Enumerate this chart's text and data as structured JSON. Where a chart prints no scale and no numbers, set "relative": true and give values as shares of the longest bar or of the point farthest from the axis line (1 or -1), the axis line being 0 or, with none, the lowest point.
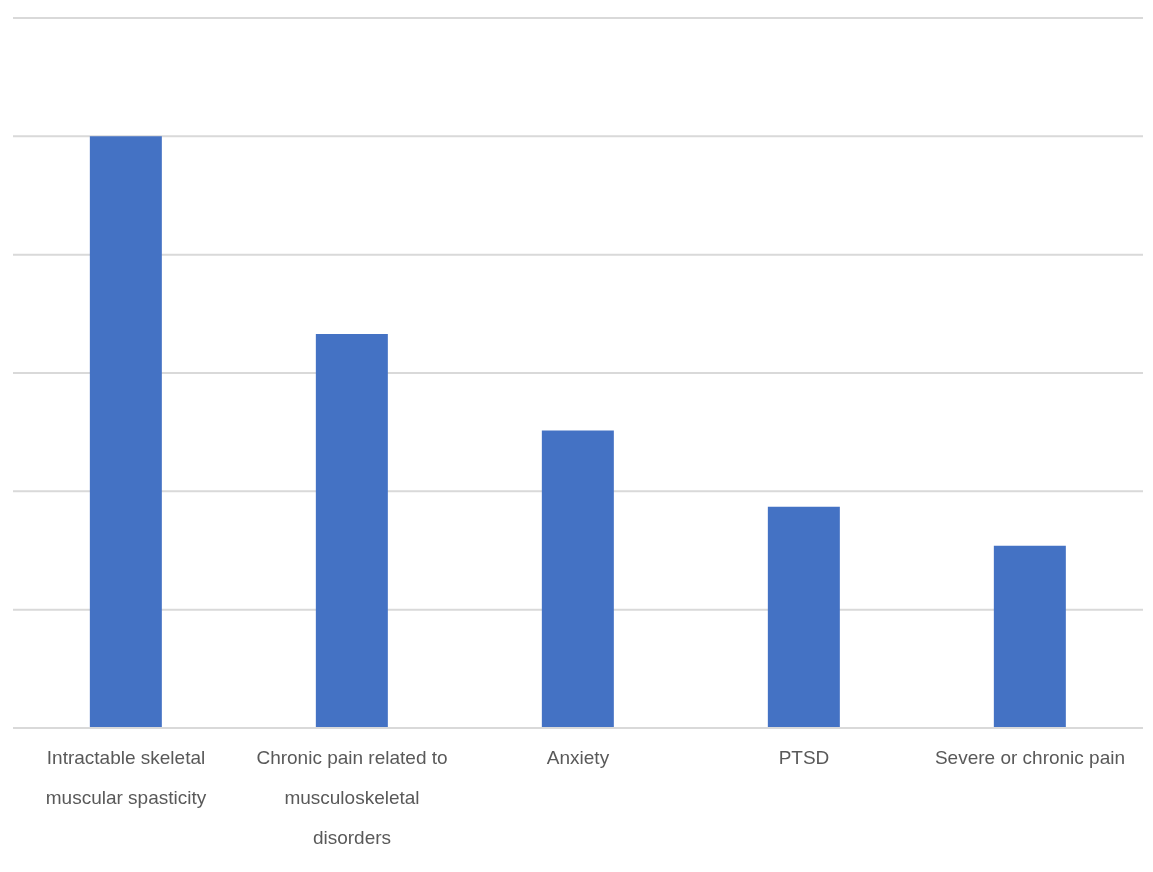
{
  "chart_data": {
    "type": "bar",
    "relative": true,
    "grid": "y",
    "color": "#4472c4",
    "categories": [
      "Intractable skeletal muscular spasticity",
      "Chronic pain related to musculoskeletal disorders",
      "Anxiety",
      "PTSD",
      "Severe or chronic pain"
    ],
    "values": [
      1,
      0.666,
      0.503,
      0.374,
      0.308
    ]
  }
}
